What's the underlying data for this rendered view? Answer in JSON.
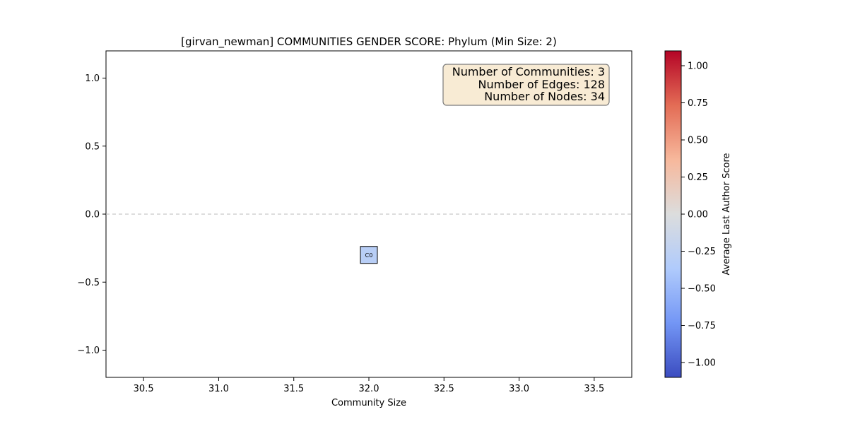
{
  "chart_data": {
    "type": "scatter",
    "title": "[girvan_newman] COMMUNITIES GENDER SCORE: Phylum (Min Size: 2)",
    "xlabel": "Community Size",
    "ylabel": "",
    "xlim": [
      30.25,
      33.75
    ],
    "ylim": [
      -1.2,
      1.2
    ],
    "x_ticks": [
      30.5,
      31.0,
      31.5,
      32.0,
      32.5,
      33.0,
      33.5
    ],
    "x_tick_labels": [
      "30.5",
      "31.0",
      "31.5",
      "32.0",
      "32.5",
      "33.0",
      "33.5"
    ],
    "y_ticks": [
      1.0,
      0.5,
      0.0,
      -0.5,
      -1.0
    ],
    "y_tick_labels": [
      "1.0",
      "0.5",
      "0.0",
      "−0.5",
      "−1.0"
    ],
    "reference_line_y": 0.0,
    "grid": false,
    "points": [
      {
        "label": "C0",
        "x": 32.0,
        "y": -0.3,
        "score": -0.3
      }
    ],
    "info_box": {
      "lines": [
        "Number of Communities: 3",
        "Number of Edges: 128",
        "Number of Nodes: 34"
      ],
      "placement": "top-right",
      "background": "#f8ebd4"
    },
    "colorbar": {
      "label": "Average Last Author Score",
      "colormap": "coolwarm",
      "range": [
        -1.1,
        1.1
      ],
      "ticks": [
        1.0,
        0.75,
        0.5,
        0.25,
        0.0,
        -0.25,
        -0.5,
        -0.75,
        -1.0
      ],
      "tick_labels": [
        "1.00",
        "0.75",
        "0.50",
        "0.25",
        "0.00",
        "−0.25",
        "−0.50",
        "−0.75",
        "−1.00"
      ],
      "colors": [
        "#3b4cc0",
        "#7396f5",
        "#b0cbfc",
        "#dcdddd",
        "#f7b89c",
        "#e36c55",
        "#b40426"
      ]
    }
  }
}
